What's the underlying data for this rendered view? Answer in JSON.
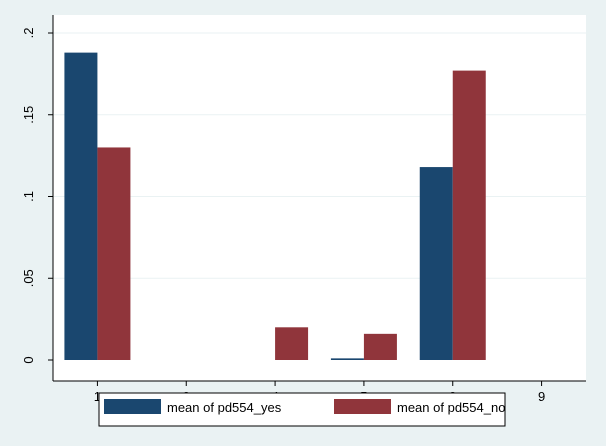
{
  "chart_data": {
    "type": "bar",
    "categories": [
      "1",
      "3",
      "4",
      "5",
      "8",
      "9"
    ],
    "series": [
      {
        "name": "mean of pd554_yes",
        "color": "#1a476f",
        "values": [
          0.188,
          0,
          0,
          0.001,
          0.118,
          0
        ]
      },
      {
        "name": "mean of pd554_no",
        "color": "#90353b",
        "values": [
          0.13,
          0,
          0.02,
          0.016,
          0.177,
          0
        ]
      }
    ],
    "yticks": [
      {
        "value": 0,
        "label": "0"
      },
      {
        "value": 0.05,
        "label": ".05"
      },
      {
        "value": 0.1,
        "label": ".1"
      },
      {
        "value": 0.15,
        "label": ".15"
      },
      {
        "value": 0.2,
        "label": ".2"
      }
    ],
    "ylim": [
      0,
      0.2
    ],
    "grid": true,
    "legend_position": "bottom",
    "colors": {
      "background": "#eaf2f3",
      "plot_background": "#ffffff",
      "gridline": "#eaf2f3"
    }
  }
}
